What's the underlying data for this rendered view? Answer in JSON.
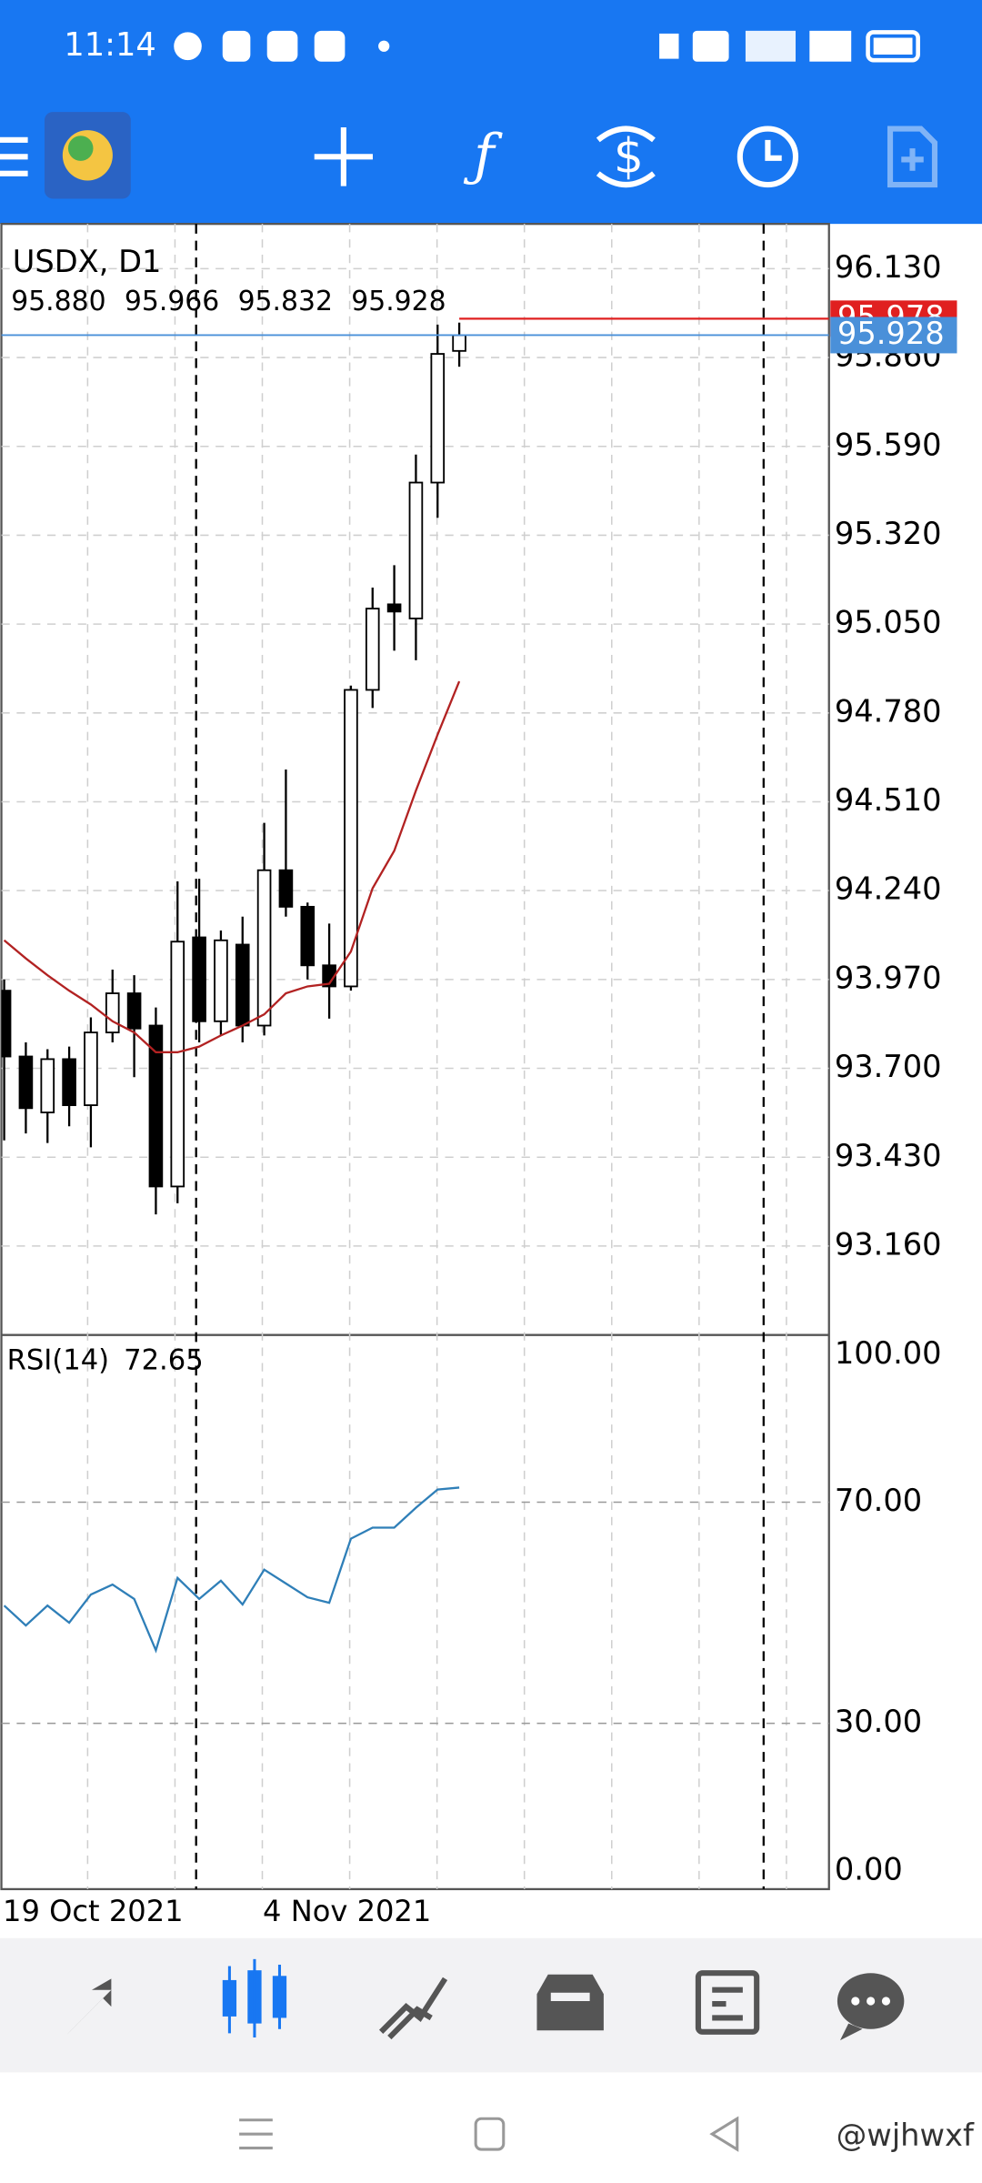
{
  "status_bar": {
    "time": "11:14"
  },
  "watermark": "@wjhwxf",
  "chart_data": [
    {
      "type": "candlestick",
      "title": "USDX, D1",
      "quote_labels": [
        "95.880",
        "95.966",
        "95.832",
        "95.928"
      ],
      "categories": [
        "19 Oct 2021",
        null,
        null,
        null,
        null,
        null,
        null,
        null,
        null,
        null,
        null,
        null,
        "4 Nov 2021",
        null,
        null,
        null,
        null,
        null,
        null,
        null,
        null,
        null
      ],
      "open": [
        93.936,
        93.736,
        93.566,
        93.728,
        93.588,
        93.809,
        93.928,
        93.83,
        93.341,
        94.098,
        93.843,
        94.076,
        93.83,
        94.302,
        94.191,
        94.013,
        93.949,
        94.85,
        95.11,
        95.067,
        95.48,
        95.88
      ],
      "high": [
        93.97,
        93.779,
        93.758,
        93.766,
        93.855,
        94.0,
        93.983,
        93.885,
        94.268,
        94.276,
        94.119,
        94.161,
        94.446,
        94.608,
        94.204,
        94.14,
        94.863,
        95.161,
        95.229,
        95.565,
        95.96,
        95.966
      ],
      "low": [
        93.481,
        93.502,
        93.473,
        93.524,
        93.46,
        93.779,
        93.673,
        93.256,
        93.29,
        93.779,
        93.8,
        93.779,
        93.8,
        94.161,
        93.97,
        93.851,
        93.936,
        94.795,
        94.969,
        94.94,
        95.373,
        95.832
      ],
      "close": [
        93.736,
        93.579,
        93.728,
        93.588,
        93.809,
        93.928,
        93.821,
        93.341,
        94.085,
        93.843,
        94.089,
        93.83,
        94.302,
        94.191,
        94.013,
        93.949,
        94.85,
        95.097,
        95.088,
        95.48,
        95.871,
        95.928
      ],
      "bull_color": "#ffffff",
      "bear_color": "#000000",
      "overlay": {
        "color": "#b22222",
        "values": [
          94.089,
          94.034,
          93.983,
          93.936,
          93.894,
          93.843,
          93.809,
          93.749,
          93.749,
          93.766,
          93.8,
          93.83,
          93.864,
          93.928,
          93.949,
          93.957,
          94.055,
          94.247,
          94.361,
          94.544,
          94.714,
          94.876
        ]
      },
      "bid": {
        "value": 95.928,
        "label": "95.928",
        "color": "#4a90d9"
      },
      "ask": {
        "value": 95.978,
        "label": "95.978",
        "color": "#e02020"
      },
      "ylim": [
        92.894,
        96.266
      ],
      "yticks": [
        {
          "value": 96.13,
          "label": "96.130"
        },
        {
          "value": 95.86,
          "label": "95.860"
        },
        {
          "value": 95.59,
          "label": "95.590"
        },
        {
          "value": 95.32,
          "label": "95.320"
        },
        {
          "value": 95.05,
          "label": "95.050"
        },
        {
          "value": 94.78,
          "label": "94.780"
        },
        {
          "value": 94.51,
          "label": "94.510"
        },
        {
          "value": 94.24,
          "label": "94.240"
        },
        {
          "value": 93.97,
          "label": "93.970"
        },
        {
          "value": 93.7,
          "label": "93.700"
        },
        {
          "value": 93.43,
          "label": "93.430"
        },
        {
          "value": 93.16,
          "label": "93.160"
        }
      ],
      "grid": true
    },
    {
      "type": "line",
      "title": "RSI(14)",
      "color": "#2f7fb8",
      "values": [
        51.3,
        47.7,
        51.3,
        48.2,
        53.3,
        55.1,
        52.5,
        43.2,
        56.3,
        52.5,
        55.8,
        51.5,
        57.8,
        55.3,
        52.8,
        51.8,
        63.4,
        65.4,
        65.4,
        69.0,
        72.3,
        72.65
      ],
      "ylim": [
        0,
        100
      ],
      "yticks": [
        {
          "value": 100,
          "label": "100.00"
        },
        {
          "value": 70,
          "label": "70.00"
        },
        {
          "value": 30,
          "label": "30.00"
        },
        {
          "value": 0,
          "label": "0.00"
        }
      ],
      "grid": true
    }
  ]
}
